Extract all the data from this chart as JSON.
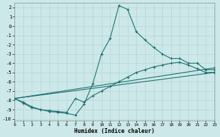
{
  "xlabel": "Humidex (Indice chaleur)",
  "background_color": "#cce8e8",
  "grid_color": "#aacccc",
  "line_color": "#1a6e6e",
  "xlim": [
    0,
    23
  ],
  "ylim": [
    -10.2,
    2.5
  ],
  "xticks": [
    0,
    1,
    2,
    3,
    4,
    5,
    6,
    7,
    8,
    9,
    10,
    11,
    12,
    13,
    14,
    15,
    16,
    17,
    18,
    19,
    20,
    21,
    22,
    23
  ],
  "yticks": [
    2,
    1,
    0,
    -1,
    -2,
    -3,
    -4,
    -5,
    -6,
    -7,
    -8,
    -9,
    -10
  ],
  "lines": [
    {
      "x": [
        0,
        1,
        2,
        3,
        4,
        5,
        6,
        7,
        8,
        9,
        10,
        11,
        12,
        13,
        14,
        15,
        16,
        17,
        18,
        19,
        20,
        21,
        22,
        23
      ],
      "y": [
        -7.8,
        -8.3,
        -8.8,
        -9.0,
        -9.2,
        -9.3,
        -9.4,
        -9.6,
        -8.4,
        -6.2,
        -3.0,
        -1.3,
        2.2,
        1.8,
        -0.6,
        -1.5,
        -2.3,
        -3.0,
        -3.5,
        -3.5,
        -4.0,
        -4.0,
        -4.7,
        -4.7
      ]
    },
    {
      "x": [
        0,
        1,
        2,
        3,
        4,
        5,
        6,
        7,
        8,
        9,
        10,
        11,
        12,
        13,
        14,
        15,
        16,
        17,
        18,
        19,
        20,
        21,
        22,
        23
      ],
      "y": [
        -7.8,
        -8.2,
        -8.7,
        -9.0,
        -9.1,
        -9.2,
        -9.3,
        -7.8,
        -8.2,
        -7.5,
        -7.0,
        -6.5,
        -6.0,
        -5.5,
        -5.0,
        -4.7,
        -4.4,
        -4.2,
        -4.0,
        -3.9,
        -4.2,
        -4.6,
        -5.0,
        -5.0
      ]
    },
    {
      "x": [
        0,
        23
      ],
      "y": [
        -7.8,
        -5.0
      ]
    },
    {
      "x": [
        0,
        23
      ],
      "y": [
        -7.8,
        -4.5
      ]
    }
  ]
}
